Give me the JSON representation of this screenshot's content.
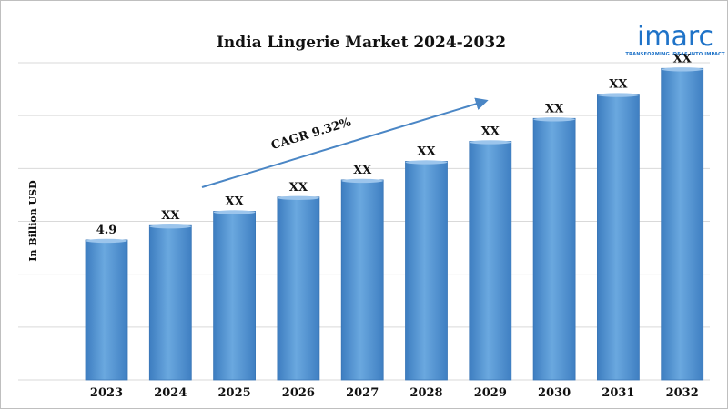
{
  "chart_data": {
    "type": "bar",
    "title": "India Lingerie Market 2024-2032",
    "ylabel": "In Billion USD",
    "xlabel": "",
    "categories": [
      "2023",
      "2024",
      "2025",
      "2026",
      "2027",
      "2028",
      "2029",
      "2030",
      "2031",
      "2032"
    ],
    "values": [
      4.9,
      5.4,
      5.9,
      6.4,
      7.0,
      7.65,
      8.35,
      9.15,
      10.0,
      10.9
    ],
    "data_labels": [
      "4.9",
      "XX",
      "XX",
      "XX",
      "XX",
      "XX",
      "XX",
      "XX",
      "XX",
      "XX"
    ],
    "ylim": [
      0,
      11.1
    ],
    "grid": true,
    "annotation": "CAGR 9.32%",
    "bar_color": "#5b9bd5"
  },
  "logo": {
    "name": "imarc",
    "tagline": "TRANSFORMING IDEAS INTO IMPACT",
    "color": "#1f73c8"
  }
}
